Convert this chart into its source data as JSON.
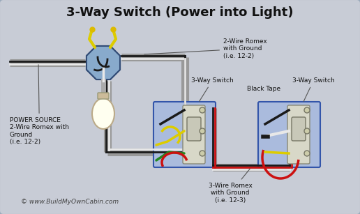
{
  "title": "3-Way Switch (Power into Light)",
  "title_fontsize": 13,
  "bg_color": "#c8ccd6",
  "border_color": "#9aaabb",
  "copyright": "© www.BuildMyOwnCabin.com",
  "labels": {
    "power_source": "POWER SOURCE\n2-Wire Romex with\nGround\n(i.e. 12-2)",
    "two_wire": "2-Wire Romex\nwith Ground\n(i.e. 12-2)",
    "three_wire": "3-Wire Romex\nwith Ground\n(i.e. 12-3)",
    "switch1": "3-Way Switch",
    "switch2": "3-Way Switch",
    "black_tape": "Black Tape"
  },
  "wire_colors": {
    "black": "#1a1a1a",
    "white": "#e8e8e8",
    "red": "#cc1111",
    "yellow": "#ddcc00",
    "green": "#228822",
    "gray": "#999999",
    "bare": "#cc9900"
  },
  "box_color_dark": "#4466aa",
  "box_color_light": "#aabbdd",
  "switch_color": "#d8d8c8",
  "bulb_color": "#fffff0",
  "oct_color": "#88aacc"
}
